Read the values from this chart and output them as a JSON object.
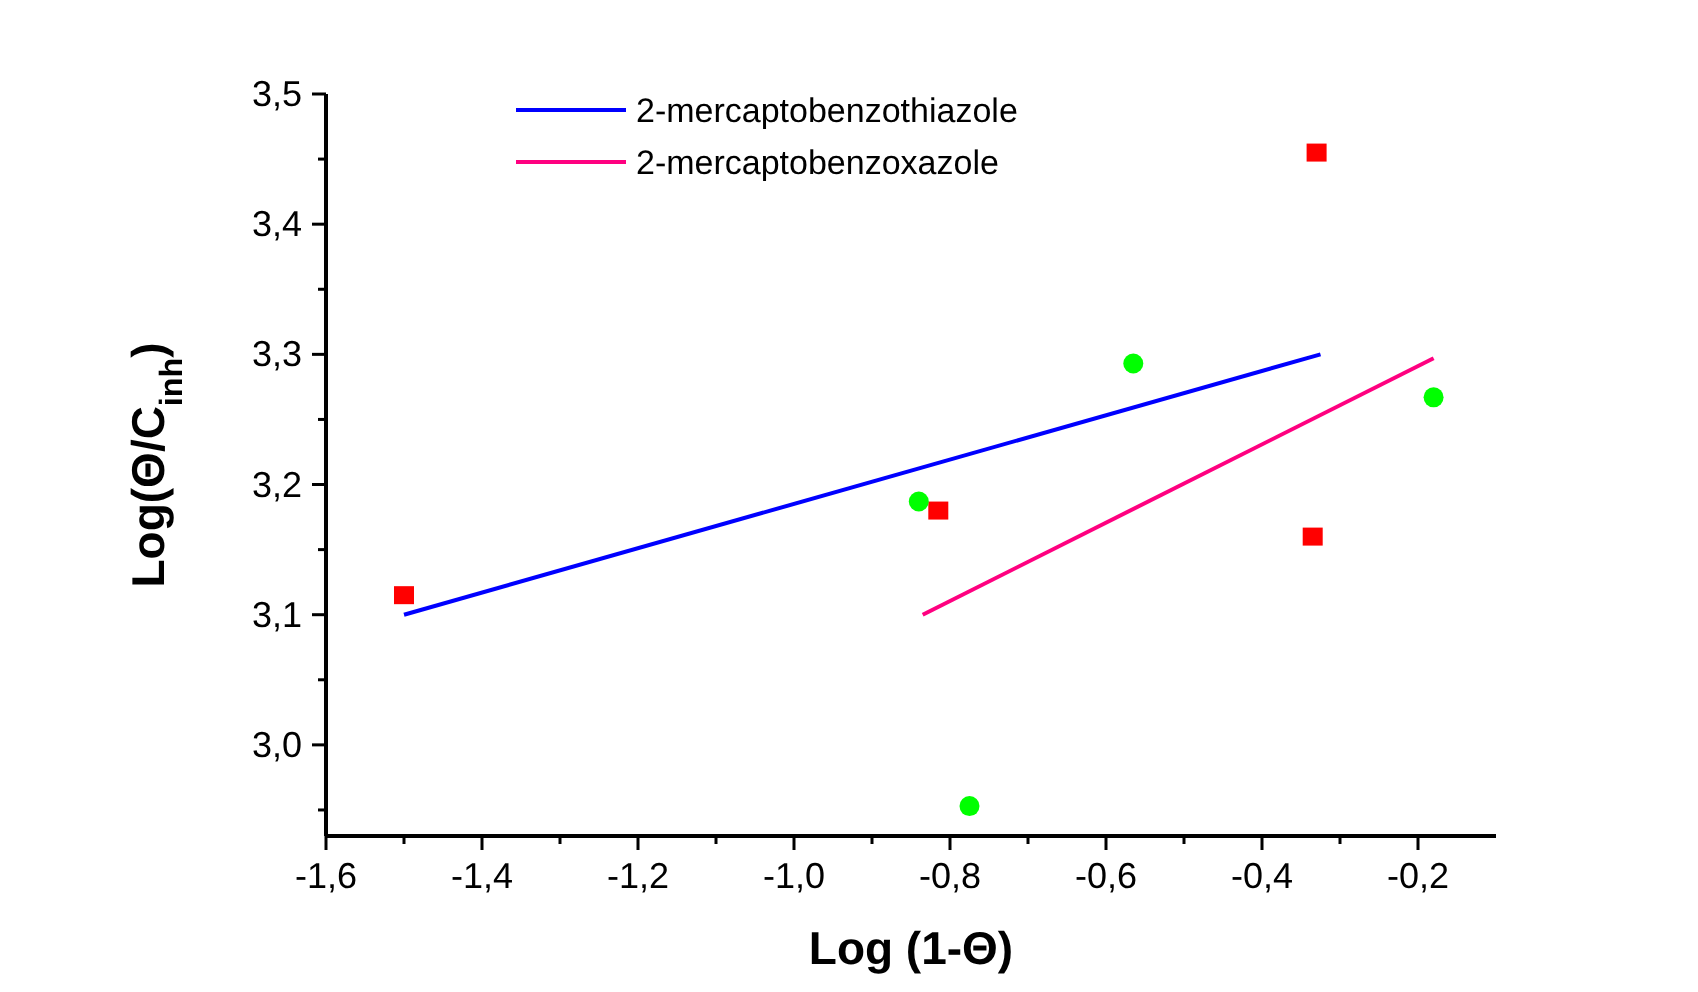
{
  "chart_data": {
    "type": "scatter",
    "xlabel": "Log (1-Θ)",
    "ylabel": "Log(Θ/C$_{inh}$)",
    "xlim": [
      -1.6,
      -0.1
    ],
    "xticks": [
      {
        "value": -1.6,
        "label": "-1,6"
      },
      {
        "value": -1.4,
        "label": "-1,4"
      },
      {
        "value": -1.2,
        "label": "-1,2"
      },
      {
        "value": -1.0,
        "label": "-1,0"
      },
      {
        "value": -0.8,
        "label": "-0,8"
      },
      {
        "value": -0.6,
        "label": "-0,6"
      },
      {
        "value": -0.4,
        "label": "-0,4"
      },
      {
        "value": -0.2,
        "label": "-0,2"
      }
    ],
    "ylim": [
      2.93,
      3.5
    ],
    "yticks": [
      {
        "value": 3.0,
        "label": "3,0"
      },
      {
        "value": 3.1,
        "label": "3,1"
      },
      {
        "value": 3.2,
        "label": "3,2"
      },
      {
        "value": 3.3,
        "label": "3,3"
      },
      {
        "value": 3.4,
        "label": "3,4"
      },
      {
        "value": 3.5,
        "label": "3,5"
      }
    ],
    "grid": false,
    "legend": "top left",
    "series": [
      {
        "name": "2-mercaptobenzothiazole",
        "type": "line",
        "color": "#0000ff",
        "x": [
          -1.5,
          -0.325
        ],
        "values": [
          3.1,
          3.3
        ],
        "marker": "none"
      },
      {
        "name": "2-mercaptobenzoxazole",
        "type": "line",
        "color": "#ff0080",
        "x": [
          -0.835,
          -0.18
        ],
        "values": [
          3.1,
          3.297
        ],
        "marker": "none"
      },
      {
        "color": "#ff0000",
        "marker": "square",
        "x": [
          -1.5,
          -0.815,
          -0.33,
          -0.335
        ],
        "values": [
          3.115,
          3.18,
          3.455,
          3.16
        ]
      },
      {
        "color": "#00ff00",
        "marker": "circle",
        "x": [
          -0.84,
          -0.775,
          -0.565,
          -0.18
        ],
        "values": [
          3.187,
          2.953,
          3.293,
          3.267
        ]
      }
    ]
  }
}
